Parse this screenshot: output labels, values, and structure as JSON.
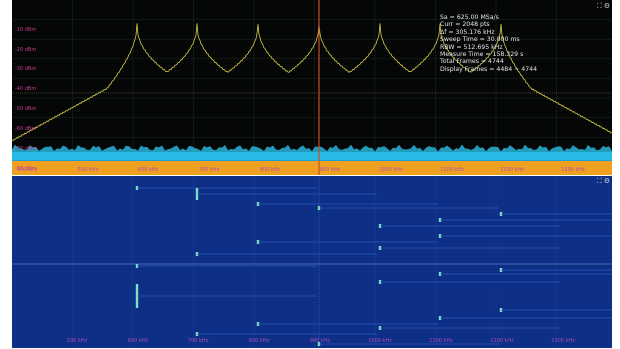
{
  "spectrum": {
    "y_labels": [
      "-10 dBm",
      "-20 dBm",
      "-30 dBm",
      "-40 dBm",
      "-50 dBm",
      "-60 dBm",
      "-70 dBm",
      "-80 dBm"
    ],
    "x_labels": [
      "400 kHz",
      "500 kHz",
      "600 kHz",
      "700 kHz",
      "800 kHz",
      "900 kHz",
      "1000 kHz",
      "1100 kHz",
      "1200 kHz",
      "1300 kHz"
    ],
    "info": {
      "sa": "Sa = 625.00 MSa/s",
      "curr": "Curr = 2048 pts",
      "df": "Δf = 305.176 kHz",
      "sweep_time": "Sweep Time = 30.000 ms",
      "rbw": "RBW = 512.695 kHz",
      "measure_time": "Measure Time = 158.329 s",
      "total_frames": "Total Frames = 4744",
      "display_frames": "Display Frames = 4484 ~ 4744"
    },
    "trace_color": "#d8cc4a",
    "marker_color": "#c8501e"
  },
  "waterfall": {
    "x_labels": [
      "500 kHz",
      "600 kHz",
      "700 kHz",
      "800 kHz",
      "900 kHz",
      "1000 kHz",
      "1100 kHz",
      "1200 kHz",
      "1300 kHz"
    ],
    "background_color": "#0d2f86",
    "line_color": "#7de0c0"
  },
  "controls": {
    "expand_icon": "expand-icon",
    "settings_icon": "gear-icon"
  }
}
